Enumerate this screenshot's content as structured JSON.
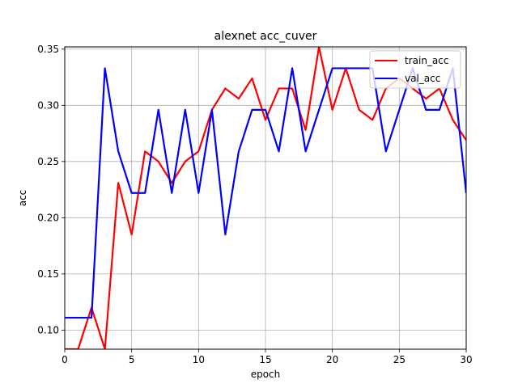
{
  "chart_data": {
    "type": "line",
    "title": "alexnet acc_cuver",
    "xlabel": "epoch",
    "ylabel": "acc",
    "xlim": [
      0,
      30
    ],
    "ylim": [
      0.083,
      0.352
    ],
    "xticks": [
      0,
      5,
      10,
      15,
      20,
      25,
      30
    ],
    "yticks": [
      0.1,
      0.15,
      0.2,
      0.25,
      0.3,
      0.35
    ],
    "ytick_labels": [
      "0.10",
      "0.15",
      "0.20",
      "0.25",
      "0.30",
      "0.35"
    ],
    "grid": true,
    "legend_position": "top-right",
    "series": [
      {
        "name": "train_acc",
        "color": "#ff0000",
        "x": [
          0,
          1,
          2,
          3,
          4,
          5,
          6,
          7,
          8,
          9,
          10,
          11,
          12,
          13,
          14,
          15,
          16,
          17,
          18,
          19,
          20,
          21,
          22,
          23,
          24,
          25,
          26,
          27,
          28,
          29,
          30
        ],
        "values": [
          0.083,
          0.083,
          0.12,
          0.083,
          0.231,
          0.185,
          0.259,
          0.25,
          0.231,
          0.25,
          0.259,
          0.296,
          0.315,
          0.306,
          0.324,
          0.287,
          0.315,
          0.315,
          0.278,
          0.352,
          0.296,
          0.333,
          0.296,
          0.287,
          0.315,
          0.324,
          0.315,
          0.306,
          0.315,
          0.287,
          0.269
        ]
      },
      {
        "name": "val_acc",
        "color": "#0000ff",
        "x": [
          0,
          1,
          2,
          3,
          4,
          5,
          6,
          7,
          8,
          9,
          10,
          11,
          12,
          13,
          14,
          15,
          16,
          17,
          18,
          19,
          20,
          21,
          22,
          23,
          24,
          25,
          26,
          27,
          28,
          29,
          30
        ],
        "values": [
          0.111,
          0.111,
          0.111,
          0.333,
          0.259,
          0.222,
          0.222,
          0.296,
          0.222,
          0.296,
          0.222,
          0.296,
          0.185,
          0.259,
          0.296,
          0.296,
          0.259,
          0.333,
          0.259,
          0.296,
          0.333,
          0.333,
          0.333,
          0.333,
          0.259,
          0.296,
          0.333,
          0.296,
          0.296,
          0.333,
          0.222
        ]
      }
    ]
  }
}
